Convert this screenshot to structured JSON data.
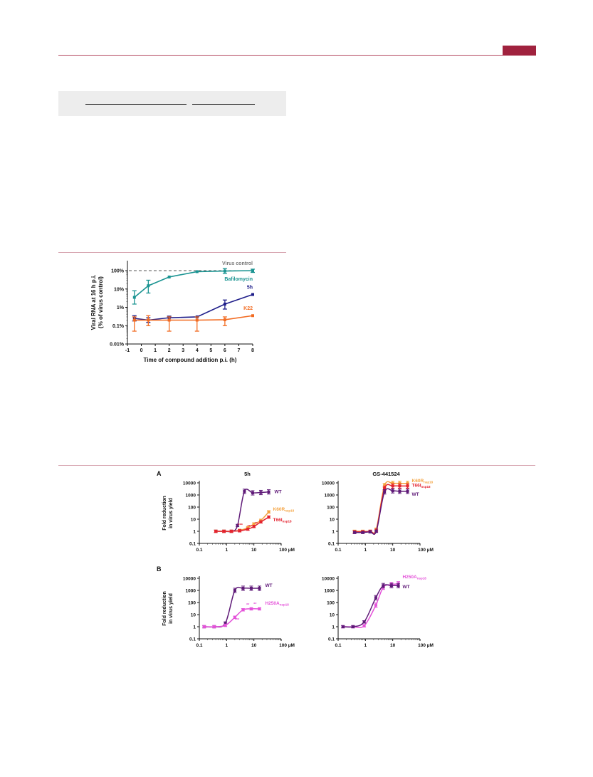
{
  "page": {
    "header_color": "#a0223e",
    "rule_color": "#d7a5b1"
  },
  "chart_data": [
    {
      "type": "line",
      "xlabel": "Time of compound addition p.i. (h)",
      "ylabel_line1": "Viral RNA at 16 h p.i.",
      "ylabel_line2": "(% of virus control)",
      "y_scale": "log",
      "xlim": [
        -1,
        8
      ],
      "ylim": [
        0.01,
        100
      ],
      "x_ticks": [
        "-1",
        "0",
        "1",
        "2",
        "3",
        "4",
        "5",
        "6",
        "7",
        "8"
      ],
      "y_ticks": [
        "0.01%",
        "0.1%",
        "1%",
        "10%",
        "100%"
      ],
      "reference": {
        "name": "Virus control",
        "value": 100,
        "color": "#777777"
      },
      "series": [
        {
          "name": "Bafilomycin",
          "color": "#1b9492",
          "x": [
            -0.5,
            0.5,
            2,
            4,
            6,
            8
          ],
          "y": [
            3.5,
            15,
            45,
            88,
            95,
            100
          ],
          "err": [
            [
              1.5,
              8
            ],
            [
              6,
              30
            ],
            [
              0,
              0
            ],
            [
              0,
              0
            ],
            [
              70,
              130
            ],
            [
              80,
              120
            ]
          ]
        },
        {
          "name": "5h",
          "color": "#1f1e8a",
          "x": [
            -0.5,
            0.5,
            2,
            4,
            6,
            8
          ],
          "y": [
            0.25,
            0.2,
            0.27,
            0.3,
            1.5,
            5
          ],
          "err": [
            [
              0.18,
              0.35
            ],
            [
              0.15,
              0.27
            ],
            [
              0.2,
              0.33
            ],
            [
              0,
              0
            ],
            [
              0.8,
              2.5
            ],
            [
              0,
              0
            ]
          ]
        },
        {
          "name": "K22",
          "color": "#f26b21",
          "x": [
            -0.5,
            0.5,
            2,
            4,
            6,
            8
          ],
          "y": [
            0.2,
            0.2,
            0.2,
            0.2,
            0.21,
            0.35
          ],
          "err": [
            [
              0.05,
              0.3
            ],
            [
              0.1,
              0.35
            ],
            [
              0.05,
              0.3
            ],
            [
              0.05,
              0.3
            ],
            [
              0.1,
              0.3
            ],
            [
              0,
              0
            ]
          ]
        }
      ]
    },
    {
      "type": "line",
      "panel_label": "A",
      "title": "5h",
      "ylabel_line1": "Fold reduction",
      "ylabel_line2": "in virus yield",
      "y_scale": "log",
      "x_scale": "log",
      "xlim": [
        0.1,
        100
      ],
      "ylim": [
        0.1,
        10000
      ],
      "x_ticks": [
        "0.1",
        "1",
        "10",
        "100 µM"
      ],
      "y_ticks": [
        "0.1",
        "1",
        "10",
        "100",
        "1000",
        "10000"
      ],
      "series": [
        {
          "name": "WT",
          "color": "#5f1a78",
          "x": [
            0.4,
            0.8,
            1.5,
            2.5,
            4.5,
            9,
            18,
            35
          ],
          "y": [
            1,
            1,
            1,
            3,
            2000,
            1500,
            1600,
            1800
          ]
        },
        {
          "name": "K60R",
          "sub": "nsp18",
          "color": "#f4a340",
          "x": [
            0.4,
            0.8,
            1.5,
            3,
            6,
            10,
            18,
            35
          ],
          "y": [
            1,
            1,
            1,
            1.2,
            2,
            4,
            8,
            40
          ]
        },
        {
          "name": "T66I",
          "sub": "nsp18",
          "color": "#e4232f",
          "x": [
            0.4,
            0.8,
            1.5,
            3,
            6,
            10,
            18,
            35
          ],
          "y": [
            1,
            1,
            1,
            1.1,
            1.5,
            2.5,
            6,
            15
          ]
        }
      ],
      "annotations": [
        "***",
        "***",
        "**"
      ]
    },
    {
      "type": "line",
      "title": "GS-441524",
      "y_scale": "log",
      "x_scale": "log",
      "xlim": [
        0.1,
        100
      ],
      "ylim": [
        0.1,
        10000
      ],
      "x_ticks": [
        "0.1",
        "1",
        "10",
        "100 µM"
      ],
      "y_ticks": [
        "0.1",
        "1",
        "10",
        "100",
        "1000",
        "10000"
      ],
      "series": [
        {
          "name": "K60R",
          "sub": "nsp18",
          "color": "#f4a340",
          "x": [
            0.4,
            0.8,
            1.5,
            2.5,
            5,
            10,
            18,
            35
          ],
          "y": [
            1,
            1,
            1,
            1.5,
            6000,
            9000,
            9000,
            9000
          ]
        },
        {
          "name": "T66I",
          "sub": "nsp18",
          "color": "#e4232f",
          "x": [
            0.4,
            0.8,
            1.5,
            2.5,
            5,
            10,
            18,
            35
          ],
          "y": [
            0.9,
            0.9,
            1,
            1.2,
            3500,
            5500,
            5500,
            5500
          ]
        },
        {
          "name": "WT",
          "color": "#5f1a78",
          "x": [
            0.4,
            0.8,
            1.5,
            2.5,
            5,
            10,
            18,
            35
          ],
          "y": [
            0.8,
            0.8,
            0.9,
            1,
            1800,
            2200,
            2000,
            2000
          ]
        }
      ]
    },
    {
      "type": "line",
      "panel_label": "B",
      "ylabel_line1": "Fold reduction",
      "ylabel_line2": "in virus yield",
      "y_scale": "log",
      "x_scale": "log",
      "xlim": [
        0.1,
        100
      ],
      "ylim": [
        0.1,
        10000
      ],
      "x_ticks": [
        "0.1",
        "1",
        "10",
        "100 µM"
      ],
      "y_ticks": [
        "0.1",
        "1",
        "10",
        "100",
        "1000",
        "10000"
      ],
      "series": [
        {
          "name": "WT",
          "color": "#5f1a78",
          "x": [
            0.15,
            0.35,
            0.9,
            2,
            4,
            8,
            16
          ],
          "y": [
            1,
            1,
            2,
            1000,
            1500,
            1500,
            1500
          ]
        },
        {
          "name": "H250A",
          "sub": "nsp18",
          "color": "#e452d9",
          "x": [
            0.15,
            0.35,
            0.9,
            2,
            4,
            8,
            16
          ],
          "y": [
            1,
            1,
            1.3,
            6,
            25,
            30,
            30
          ]
        }
      ],
      "annotations": [
        "**",
        "**",
        "***"
      ]
    },
    {
      "type": "line",
      "y_scale": "log",
      "x_scale": "log",
      "xlim": [
        0.1,
        100
      ],
      "ylim": [
        0.1,
        10000
      ],
      "x_ticks": [
        "0.1",
        "1",
        "10",
        "100 µM"
      ],
      "y_ticks": [
        "0.1",
        "1",
        "10",
        "100",
        "1000",
        "10000"
      ],
      "series": [
        {
          "name": "H250A",
          "sub": "nsp18",
          "color": "#e452d9",
          "x": [
            0.15,
            0.35,
            0.9,
            2.4,
            4.5,
            9,
            16
          ],
          "y": [
            1,
            1,
            1.2,
            60,
            1800,
            3000,
            3500
          ]
        },
        {
          "name": "WT",
          "color": "#5f1a78",
          "x": [
            0.15,
            0.35,
            0.9,
            2.4,
            4.5,
            9,
            16
          ],
          "y": [
            1,
            1,
            2.5,
            250,
            2500,
            2500,
            2500
          ]
        }
      ]
    }
  ]
}
